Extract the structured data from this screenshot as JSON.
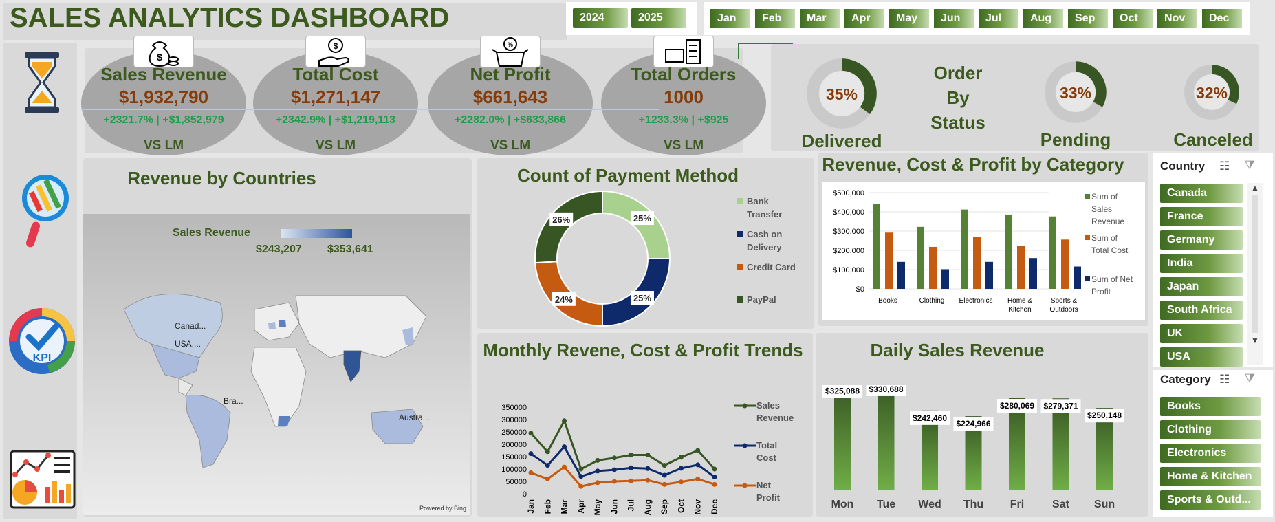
{
  "header": {
    "title": "SALES ANALYTICS DASHBOARD"
  },
  "years": [
    "2024",
    "2025"
  ],
  "months": [
    "Jan",
    "Feb",
    "Mar",
    "Apr",
    "May",
    "Jun",
    "Jul",
    "Aug",
    "Sep",
    "Oct",
    "Nov",
    "Dec"
  ],
  "kpis": [
    {
      "title": "Sales Revenue",
      "value": "$1,932,790",
      "delta": "+2321.7% | +$1,852,979",
      "lm": "VS LM",
      "icon": "money-bag-icon"
    },
    {
      "title": "Total Cost",
      "value": "$1,271,147",
      "delta": "+2342.9% | +$1,219,113",
      "lm": "VS LM",
      "icon": "hand-coin-icon"
    },
    {
      "title": "Net Profit",
      "value": "$661,643",
      "delta": "+2282.0% | +$633,866",
      "lm": "VS LM",
      "icon": "discount-box-icon"
    },
    {
      "title": "Total Orders",
      "value": "1000",
      "delta": "+1233.3% | +$925",
      "lm": "VS LM",
      "icon": "delivery-truck-icon"
    }
  ],
  "order_status": {
    "title_line1": "Order",
    "title_line2": "By",
    "title_line3": "Status",
    "items": [
      {
        "label": "Delivered",
        "pct": "35%",
        "value": 0.35
      },
      {
        "label": "Pending",
        "pct": "33%",
        "value": 0.33
      },
      {
        "label": "Canceled",
        "pct": "32%",
        "value": 0.32
      }
    ]
  },
  "map": {
    "title": "Revenue by Countries",
    "legend_title": "Sales Revenue",
    "legend_min": "$243,207",
    "legend_max": "$353,641",
    "labels": [
      "Canad...",
      "USA,...",
      "Bra...",
      "Austra..."
    ],
    "credit": "Powered by Bing"
  },
  "payment": {
    "title": "Count of Payment Method",
    "slices": [
      {
        "name": "Bank Transfer",
        "line1": "Bank",
        "line2": "Transfer",
        "pct": "25%",
        "value": 25,
        "color": "#a9d18e"
      },
      {
        "name": "Cash on Delivery",
        "line1": "Cash on",
        "line2": "Delivery",
        "pct": "25%",
        "value": 25,
        "color": "#0e2a6b"
      },
      {
        "name": "Credit Card",
        "line1": "Credit Card",
        "line2": "",
        "pct": "24%",
        "value": 24,
        "color": "#c55a11"
      },
      {
        "name": "PayPal",
        "line1": "PayPal",
        "line2": "",
        "pct": "26%",
        "value": 26,
        "color": "#375623"
      }
    ]
  },
  "category_chart": {
    "title": "Revenue, Cost  & Profit by Category",
    "y_ticks": [
      "$500,000",
      "$400,000",
      "$300,000",
      "$200,000",
      "$100,000",
      "$0"
    ],
    "legend": [
      {
        "line1": "Sum of",
        "line2": "Sales",
        "line3": "Revenue",
        "color": "#548235"
      },
      {
        "line1": "Sum of",
        "line2": "Total Cost",
        "line3": "",
        "color": "#c55a11"
      },
      {
        "line1": "Sum of Net",
        "line2": "Profit",
        "line3": "",
        "color": "#0e2a6b"
      }
    ]
  },
  "monthly_chart": {
    "title": "Monthly Revene, Cost & Profit Trends",
    "y_ticks": [
      "350000",
      "300000",
      "250000",
      "200000",
      "150000",
      "100000",
      "50000",
      "0"
    ],
    "legend": [
      {
        "line1": "Sales",
        "line2": "Revenue",
        "color": "#375623"
      },
      {
        "line1": "Total",
        "line2": "Cost",
        "color": "#0e2a6b"
      },
      {
        "line1": "Net",
        "line2": "Profit",
        "color": "#c55a11"
      }
    ]
  },
  "daily_chart": {
    "title": "Daily Sales Revenue",
    "days": [
      "Mon",
      "Tue",
      "Wed",
      "Thu",
      "Fri",
      "Sat",
      "Sun"
    ],
    "labels": [
      "$325,088",
      "$330,688",
      "$242,460",
      "$224,966",
      "$280,069",
      "$279,371",
      "$250,148"
    ]
  },
  "slicers": {
    "country_title": "Country",
    "countries": [
      "Canada",
      "France",
      "Germany",
      "India",
      "Japan",
      "South Africa",
      "UK",
      "USA"
    ],
    "category_title": "Category",
    "categories": [
      "Books",
      "Clothing",
      "Electronics",
      "Home & Kitchen",
      "Sports & Outd..."
    ]
  },
  "chart_data": [
    {
      "type": "pie",
      "title": "Count of Payment Method",
      "categories": [
        "Bank Transfer",
        "Cash on Delivery",
        "Credit Card",
        "PayPal"
      ],
      "values": [
        25,
        25,
        24,
        26
      ]
    },
    {
      "type": "bar",
      "title": "Revenue, Cost  & Profit by Category",
      "categories": [
        "Books",
        "Clothing",
        "Electronics",
        "Home & Kitchen",
        "Sports & Outdoors"
      ],
      "series": [
        {
          "name": "Sum of Sales Revenue",
          "values": [
            440000,
            322000,
            412000,
            386000,
            376000
          ]
        },
        {
          "name": "Sum of Total Cost",
          "values": [
            292000,
            218000,
            268000,
            225000,
            256000
          ]
        },
        {
          "name": "Sum of Net Profit",
          "values": [
            140000,
            102000,
            140000,
            160000,
            116000
          ]
        }
      ],
      "ylim": [
        0,
        500000
      ]
    },
    {
      "type": "line",
      "title": "Monthly Revene, Cost & Profit Trends",
      "categories": [
        "Jan",
        "Feb",
        "Mar",
        "Apr",
        "May",
        "Jun",
        "Jul",
        "Aug",
        "Sep",
        "Oct",
        "Nov",
        "Dec"
      ],
      "series": [
        {
          "name": "Sales Revenue",
          "values": [
            245000,
            170000,
            295000,
            100000,
            135000,
            145000,
            157000,
            157000,
            115000,
            148000,
            175000,
            100000
          ]
        },
        {
          "name": "Total Cost",
          "values": [
            162000,
            115000,
            190000,
            70000,
            92000,
            97000,
            105000,
            102000,
            75000,
            103000,
            117000,
            68000
          ]
        },
        {
          "name": "Net Profit",
          "values": [
            85000,
            60000,
            108000,
            30000,
            45000,
            50000,
            52000,
            55000,
            38000,
            48000,
            60000,
            38000
          ]
        }
      ],
      "ylim": [
        0,
        350000
      ]
    },
    {
      "type": "bar",
      "title": "Daily Sales Revenue",
      "categories": [
        "Mon",
        "Tue",
        "Wed",
        "Thu",
        "Fri",
        "Sat",
        "Sun"
      ],
      "values": [
        325088,
        330688,
        242460,
        224966,
        280069,
        279371,
        250148
      ]
    },
    {
      "type": "pie",
      "title": "Order By Status",
      "categories": [
        "Delivered",
        "Pending",
        "Canceled"
      ],
      "values": [
        35,
        33,
        32
      ]
    }
  ]
}
